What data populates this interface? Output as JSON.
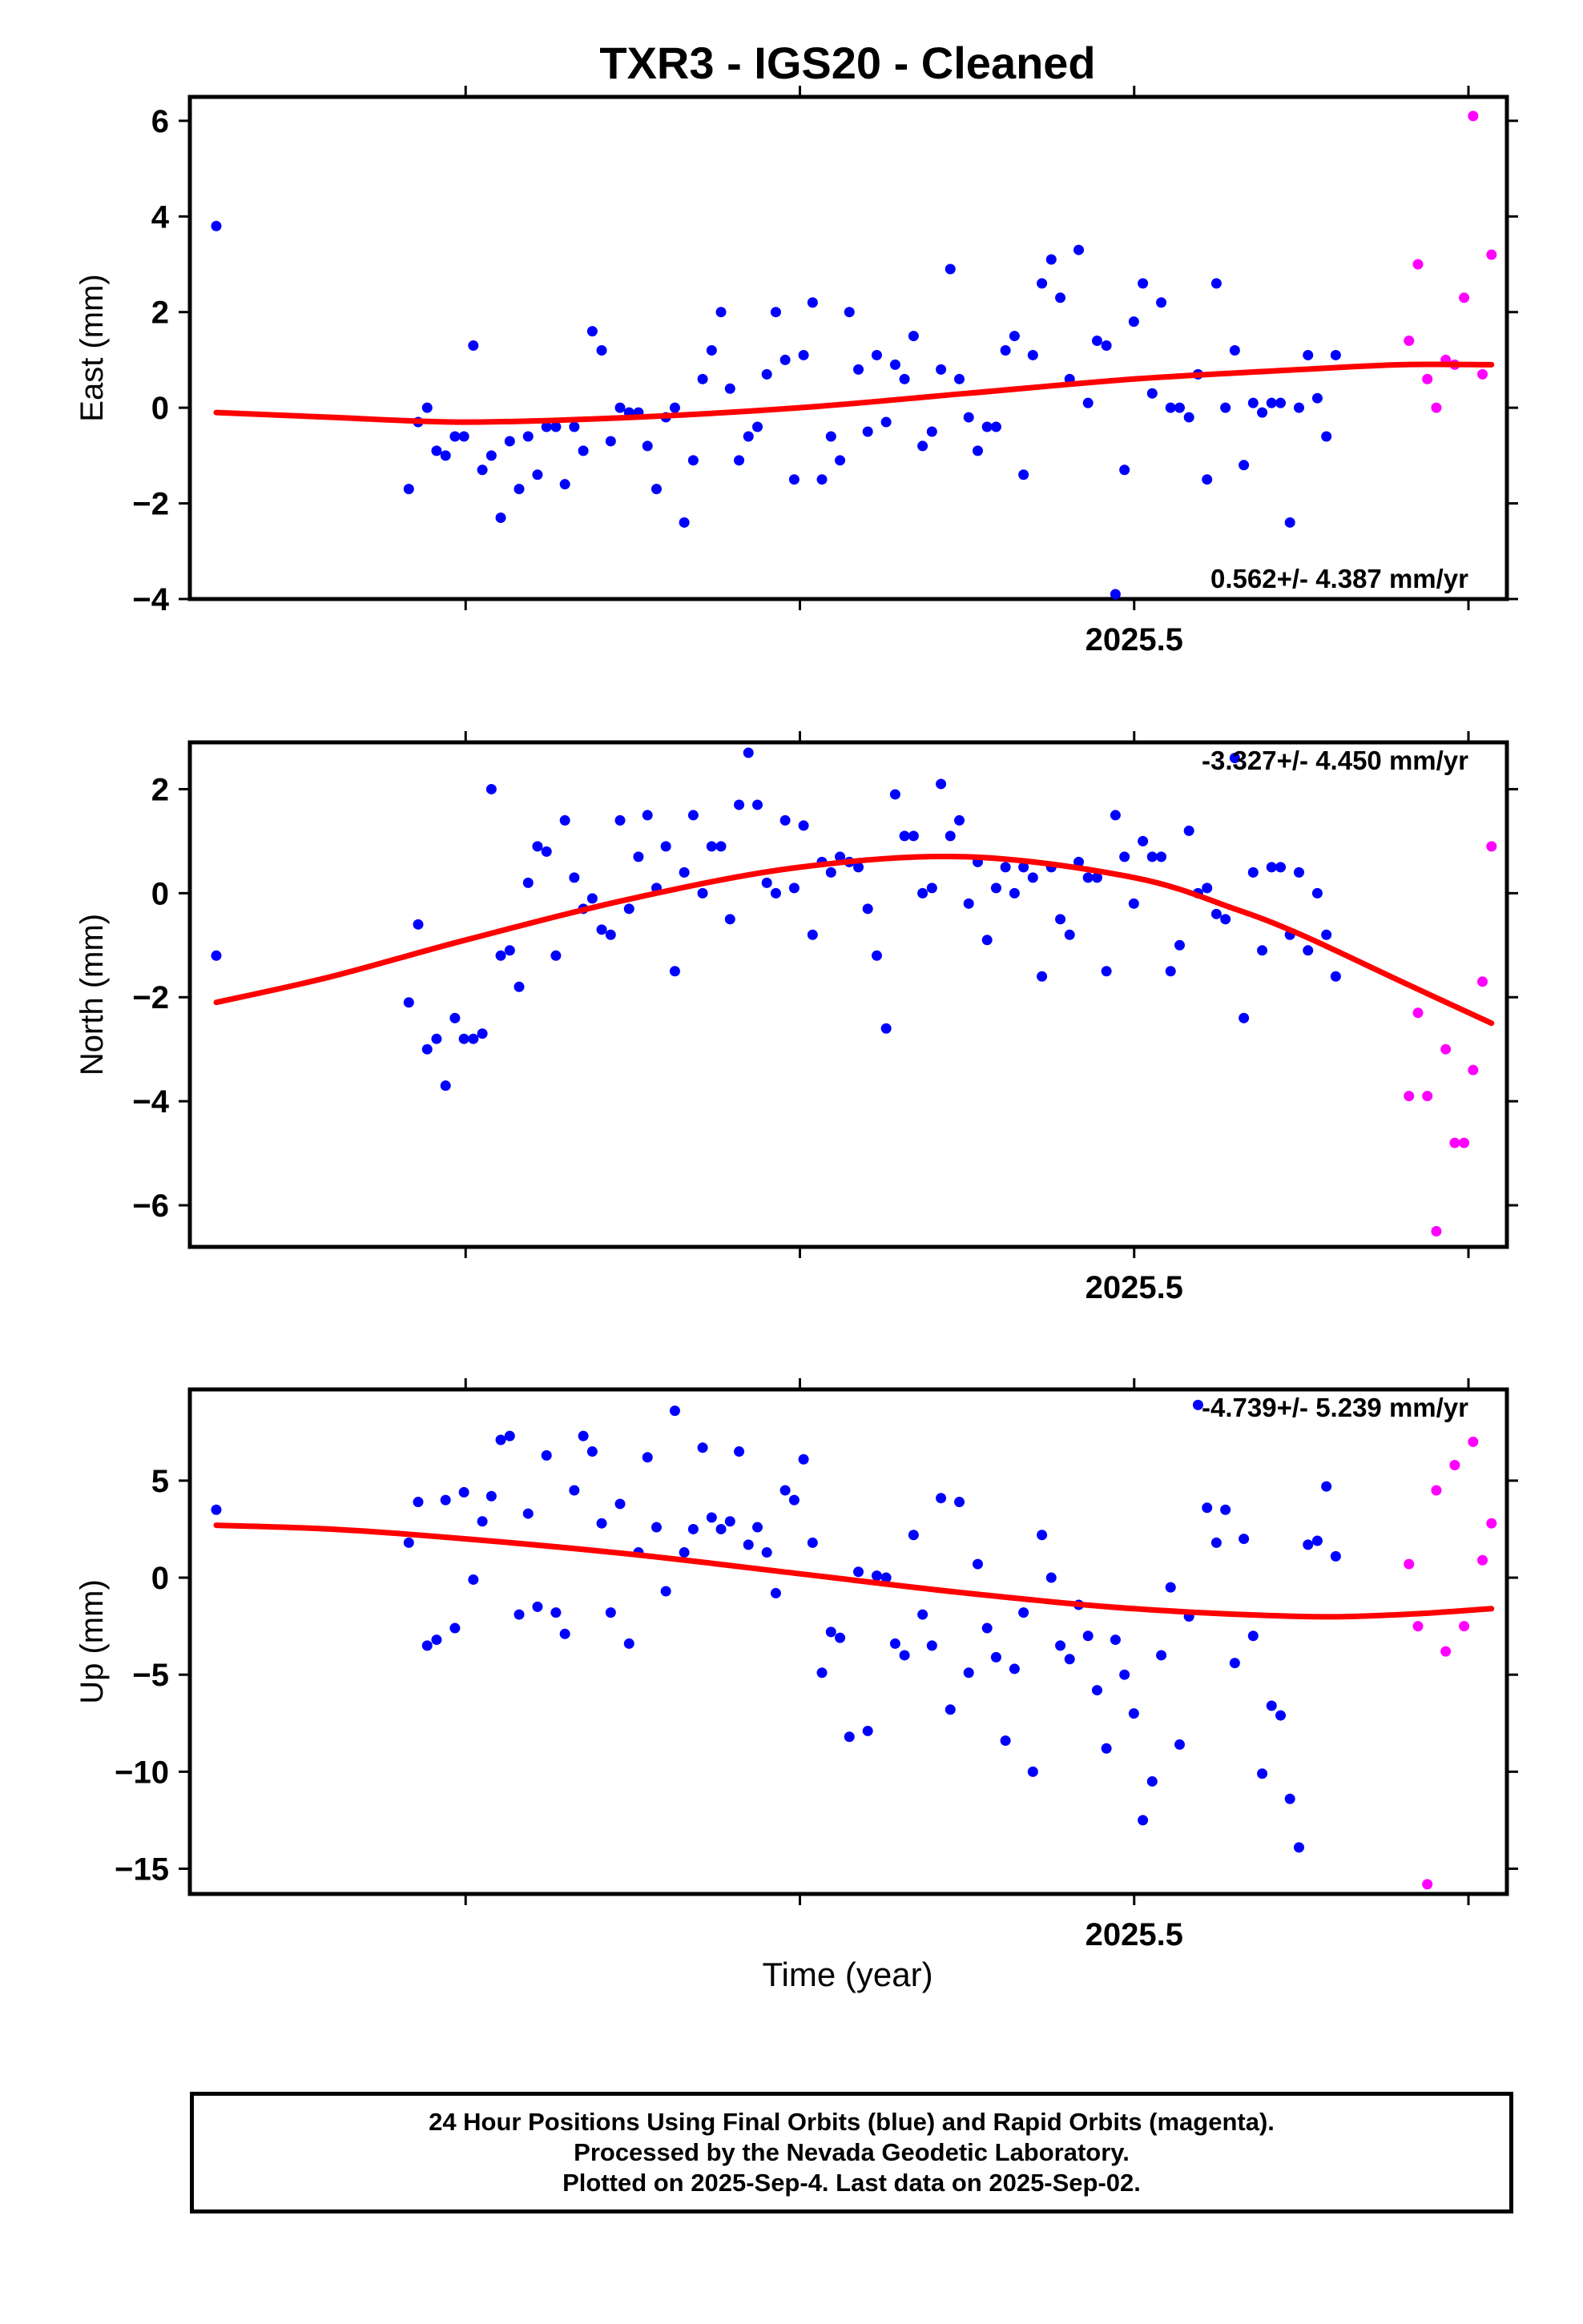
{
  "title": "TXR3  - IGS20 - Cleaned",
  "x_axis_label": "Time (year)",
  "footer": {
    "line1": "24 Hour Positions Using Final Orbits (blue) and Rapid Orbits (magenta).",
    "line2": "Processed by the Nevada Geodetic Laboratory.",
    "line3": "Plotted on 2025-Sep-4. Last data on 2025-Sep-02."
  },
  "colors": {
    "final": "#0000ff",
    "rapid": "#ff00ff",
    "fit": "#ff0000"
  },
  "chart_data": [
    {
      "type": "scatter",
      "ylabel": "East (mm)",
      "rate_text": "0.562+/- 4.387 mm/yr",
      "xlim": [
        2025.2175,
        2025.6115
      ],
      "ylim": [
        -4,
        6.5
      ],
      "yticks": [
        6,
        4,
        2,
        0,
        -2,
        -4
      ],
      "ytick_labels": [
        "6",
        "4",
        "2",
        "0",
        "−2",
        "−4"
      ],
      "xticks": [
        2025.5
      ],
      "xtick_labels": [
        "2025.5"
      ],
      "x_minor": [
        2025.3,
        2025.4,
        2025.6
      ],
      "series": [
        {
          "name": "Final Orbits",
          "color": "#0000ff",
          "x": [
            2025.2254,
            2025.283,
            2025.2858,
            2025.2885,
            2025.2913,
            2025.294,
            2025.2968,
            2025.2995,
            2025.3023,
            2025.305,
            2025.3077,
            2025.3105,
            2025.3132,
            2025.316,
            2025.3187,
            2025.3215,
            2025.3242,
            2025.327,
            2025.3297,
            2025.3325,
            2025.3352,
            2025.3379,
            2025.3407,
            2025.3434,
            2025.3462,
            2025.3489,
            2025.3517,
            2025.3544,
            2025.3571,
            2025.3599,
            2025.3626,
            2025.3654,
            2025.3681,
            2025.3709,
            2025.3736,
            2025.3764,
            2025.3791,
            2025.3818,
            2025.3846,
            2025.3873,
            2025.3901,
            2025.3928,
            2025.3956,
            2025.3983,
            2025.4011,
            2025.4038,
            2025.4066,
            2025.4093,
            2025.412,
            2025.4148,
            2025.4175,
            2025.4203,
            2025.423,
            2025.4258,
            2025.4285,
            2025.4313,
            2025.434,
            2025.4367,
            2025.4395,
            2025.4422,
            2025.445,
            2025.4477,
            2025.4505,
            2025.4532,
            2025.456,
            2025.4587,
            2025.4615,
            2025.4642,
            2025.4669,
            2025.4697,
            2025.4724,
            2025.4752,
            2025.4779,
            2025.4807,
            2025.4834,
            2025.4862,
            2025.4889,
            2025.4917,
            2025.4944,
            2025.4971,
            2025.4999,
            2025.5026,
            2025.5054,
            2025.5081,
            2025.5109,
            2025.5136,
            2025.5164,
            2025.5191,
            2025.5218,
            2025.5246,
            2025.5273,
            2025.5301,
            2025.5328,
            2025.5356,
            2025.5383,
            2025.5411,
            2025.5438,
            2025.5466,
            2025.5493,
            2025.552,
            2025.5548,
            2025.5575,
            2025.5603
          ],
          "y": [
            3.8,
            -1.7,
            -0.3,
            0.0,
            -0.9,
            -1.0,
            -0.6,
            -0.6,
            1.3,
            -1.3,
            -1.0,
            -2.3,
            -0.7,
            -1.7,
            -0.6,
            -1.4,
            -0.4,
            -0.4,
            -1.6,
            -0.4,
            -0.9,
            1.6,
            1.2,
            -0.7,
            0.0,
            -0.1,
            -0.1,
            -0.8,
            -1.7,
            -0.2,
            0.0,
            -2.4,
            -1.1,
            0.6,
            1.2,
            2.0,
            0.4,
            -1.1,
            -0.6,
            -0.4,
            0.7,
            2.0,
            1.0,
            -1.5,
            1.1,
            2.2,
            -1.5,
            -0.6,
            -1.1,
            2.0,
            0.8,
            -0.5,
            1.1,
            -0.3,
            0.9,
            0.6,
            1.5,
            -0.8,
            -0.5,
            0.8,
            2.9,
            0.6,
            -0.2,
            -0.9,
            -0.4,
            -0.4,
            1.2,
            1.5,
            -1.4,
            1.1,
            2.6,
            3.1,
            2.3,
            0.6,
            3.3,
            0.1,
            1.4,
            1.3,
            -3.9,
            -1.3,
            1.8,
            2.6,
            0.3,
            2.2,
            0.0,
            0.0,
            -0.2,
            0.7,
            -1.5,
            2.6,
            0.0,
            1.2,
            -1.2,
            0.1,
            -0.1,
            0.1,
            0.1,
            -2.4,
            0.0,
            1.1,
            0.2,
            -0.6,
            1.1
          ]
        },
        {
          "name": "Rapid Orbits",
          "color": "#ff00ff",
          "x": [
            2025.5822,
            2025.5849,
            2025.5877,
            2025.5904,
            2025.5932,
            2025.5959,
            2025.5987,
            2025.6014,
            2025.6042,
            2025.6069
          ],
          "y": [
            1.4,
            3.0,
            0.6,
            0.0,
            1.0,
            0.9,
            2.3,
            6.1,
            0.7,
            3.2
          ]
        }
      ],
      "fit": {
        "color": "#ff0000",
        "x": [
          2025.2254,
          2025.26,
          2025.3,
          2025.35,
          2025.4,
          2025.45,
          2025.5,
          2025.55,
          2025.58,
          2025.6069
        ],
        "y": [
          -0.1,
          -0.2,
          -0.3,
          -0.2,
          0.0,
          0.3,
          0.6,
          0.8,
          0.9,
          0.9
        ]
      }
    },
    {
      "type": "scatter",
      "ylabel": "North (mm)",
      "rate_text": "-3.327+/- 4.450 mm/yr",
      "xlim": [
        2025.2175,
        2025.6115
      ],
      "ylim": [
        -6.8,
        2.9
      ],
      "yticks": [
        2,
        0,
        -2,
        -4,
        -6
      ],
      "ytick_labels": [
        "2",
        "0",
        "−2",
        "−4",
        "−6"
      ],
      "xticks": [
        2025.5
      ],
      "xtick_labels": [
        "2025.5"
      ],
      "x_minor": [
        2025.3,
        2025.4,
        2025.6
      ],
      "series": [
        {
          "name": "Final Orbits",
          "color": "#0000ff",
          "x": [
            2025.2254,
            2025.283,
            2025.2858,
            2025.2885,
            2025.2913,
            2025.294,
            2025.2968,
            2025.2995,
            2025.3023,
            2025.305,
            2025.3077,
            2025.3105,
            2025.3132,
            2025.316,
            2025.3187,
            2025.3215,
            2025.3242,
            2025.327,
            2025.3297,
            2025.3325,
            2025.3352,
            2025.3379,
            2025.3407,
            2025.3434,
            2025.3462,
            2025.3489,
            2025.3517,
            2025.3544,
            2025.3571,
            2025.3599,
            2025.3626,
            2025.3654,
            2025.3681,
            2025.3709,
            2025.3736,
            2025.3764,
            2025.3791,
            2025.3818,
            2025.3846,
            2025.3873,
            2025.3901,
            2025.3928,
            2025.3956,
            2025.3983,
            2025.4011,
            2025.4038,
            2025.4066,
            2025.4093,
            2025.412,
            2025.4148,
            2025.4175,
            2025.4203,
            2025.423,
            2025.4258,
            2025.4285,
            2025.4313,
            2025.434,
            2025.4367,
            2025.4395,
            2025.4422,
            2025.445,
            2025.4477,
            2025.4505,
            2025.4532,
            2025.456,
            2025.4587,
            2025.4615,
            2025.4642,
            2025.4669,
            2025.4697,
            2025.4724,
            2025.4752,
            2025.4779,
            2025.4807,
            2025.4834,
            2025.4862,
            2025.4889,
            2025.4917,
            2025.4944,
            2025.4971,
            2025.4999,
            2025.5026,
            2025.5054,
            2025.5081,
            2025.5109,
            2025.5136,
            2025.5164,
            2025.5191,
            2025.5218,
            2025.5246,
            2025.5273,
            2025.5301,
            2025.5328,
            2025.5356,
            2025.5383,
            2025.5411,
            2025.5438,
            2025.5466,
            2025.5493,
            2025.552,
            2025.5548,
            2025.5575,
            2025.5603
          ],
          "y": [
            -1.2,
            -2.1,
            -0.6,
            -3.0,
            -2.8,
            -3.7,
            -2.4,
            -2.8,
            -2.8,
            -2.7,
            2.0,
            -1.2,
            -1.1,
            -1.8,
            0.2,
            0.9,
            0.8,
            -1.2,
            1.4,
            0.3,
            -0.3,
            -0.1,
            -0.7,
            -0.8,
            1.4,
            -0.3,
            0.7,
            1.5,
            0.1,
            0.9,
            -1.5,
            0.4,
            1.5,
            0.0,
            0.9,
            0.9,
            -0.5,
            1.7,
            2.7,
            1.7,
            0.2,
            0.0,
            1.4,
            0.1,
            1.3,
            -0.8,
            0.6,
            0.4,
            0.7,
            0.6,
            0.5,
            -0.3,
            -1.2,
            -2.6,
            1.9,
            1.1,
            1.1,
            0.0,
            0.1,
            2.1,
            1.1,
            1.4,
            -0.2,
            0.6,
            -0.9,
            0.1,
            0.5,
            0.0,
            0.5,
            0.3,
            -1.6,
            0.5,
            -0.5,
            -0.8,
            0.6,
            0.3,
            0.3,
            -1.5,
            1.5,
            0.7,
            -0.2,
            1.0,
            0.7,
            0.7,
            -1.5,
            -1.0,
            1.2,
            0.0,
            0.1,
            -0.4,
            -0.5,
            2.6,
            -2.4,
            0.4,
            -1.1,
            0.5,
            0.5,
            -0.8,
            0.4,
            -1.1,
            0.0,
            -0.8,
            -1.6
          ]
        },
        {
          "name": "Rapid Orbits",
          "color": "#ff00ff",
          "x": [
            2025.5822,
            2025.5849,
            2025.5877,
            2025.5904,
            2025.5932,
            2025.5959,
            2025.5987,
            2025.6014,
            2025.6042,
            2025.6069
          ],
          "y": [
            -3.9,
            -2.3,
            -3.9,
            -6.5,
            -3.0,
            -4.8,
            -4.8,
            -3.4,
            -1.7,
            0.9
          ]
        }
      ],
      "fit": {
        "color": "#ff0000",
        "x": [
          2025.2254,
          2025.26,
          2025.3,
          2025.35,
          2025.4,
          2025.45,
          2025.5,
          2025.53,
          2025.55,
          2025.58,
          2025.6069
        ],
        "y": [
          -2.1,
          -1.6,
          -0.9,
          -0.1,
          0.5,
          0.7,
          0.3,
          -0.3,
          -0.8,
          -1.7,
          -2.5
        ]
      }
    },
    {
      "type": "scatter",
      "ylabel": "Up (mm)",
      "rate_text": "-4.739+/- 5.239 mm/yr",
      "xlim": [
        2025.2175,
        2025.6115
      ],
      "ylim": [
        -16.3,
        9.7
      ],
      "yticks": [
        5,
        0,
        -5,
        -10,
        -15
      ],
      "ytick_labels": [
        "5",
        "0",
        "−5",
        "−10",
        "−15"
      ],
      "xticks": [
        2025.5
      ],
      "xtick_labels": [
        "2025.5"
      ],
      "x_minor": [
        2025.3,
        2025.4,
        2025.6
      ],
      "series": [
        {
          "name": "Final Orbits",
          "color": "#0000ff",
          "x": [
            2025.2254,
            2025.283,
            2025.2858,
            2025.2885,
            2025.2913,
            2025.294,
            2025.2968,
            2025.2995,
            2025.3023,
            2025.305,
            2025.3077,
            2025.3105,
            2025.3132,
            2025.316,
            2025.3187,
            2025.3215,
            2025.3242,
            2025.327,
            2025.3297,
            2025.3325,
            2025.3352,
            2025.3379,
            2025.3407,
            2025.3434,
            2025.3462,
            2025.3489,
            2025.3517,
            2025.3544,
            2025.3571,
            2025.3599,
            2025.3626,
            2025.3654,
            2025.3681,
            2025.3709,
            2025.3736,
            2025.3764,
            2025.3791,
            2025.3818,
            2025.3846,
            2025.3873,
            2025.3901,
            2025.3928,
            2025.3956,
            2025.3983,
            2025.4011,
            2025.4038,
            2025.4066,
            2025.4093,
            2025.412,
            2025.4148,
            2025.4175,
            2025.4203,
            2025.423,
            2025.4258,
            2025.4285,
            2025.4313,
            2025.434,
            2025.4367,
            2025.4395,
            2025.4422,
            2025.445,
            2025.4477,
            2025.4505,
            2025.4532,
            2025.456,
            2025.4587,
            2025.4615,
            2025.4642,
            2025.4669,
            2025.4697,
            2025.4724,
            2025.4752,
            2025.4779,
            2025.4807,
            2025.4834,
            2025.4862,
            2025.4889,
            2025.4917,
            2025.4944,
            2025.4971,
            2025.4999,
            2025.5026,
            2025.5054,
            2025.5081,
            2025.5109,
            2025.5136,
            2025.5164,
            2025.5191,
            2025.5218,
            2025.5246,
            2025.5273,
            2025.5301,
            2025.5328,
            2025.5356,
            2025.5383,
            2025.5411,
            2025.5438,
            2025.5466,
            2025.5493,
            2025.552,
            2025.5548,
            2025.5575,
            2025.5603
          ],
          "y": [
            3.5,
            1.8,
            3.9,
            -3.5,
            -3.2,
            4.0,
            -2.6,
            4.4,
            -0.1,
            2.9,
            4.2,
            7.1,
            7.3,
            -1.9,
            3.3,
            -1.5,
            6.3,
            -1.8,
            -2.9,
            4.5,
            7.3,
            6.5,
            2.8,
            -1.8,
            3.8,
            -3.4,
            1.3,
            6.2,
            2.6,
            -0.7,
            8.6,
            1.3,
            2.5,
            6.7,
            3.1,
            2.5,
            2.9,
            6.5,
            1.7,
            2.6,
            1.3,
            -0.8,
            4.5,
            4.0,
            6.1,
            1.8,
            -4.9,
            -2.8,
            -3.1,
            -8.2,
            0.3,
            -7.9,
            0.1,
            0.0,
            -3.4,
            -4.0,
            2.2,
            -1.9,
            -3.5,
            4.1,
            -6.8,
            3.9,
            -4.9,
            0.7,
            -2.6,
            -4.1,
            -8.4,
            -4.7,
            -1.8,
            -10.0,
            2.2,
            0.0,
            -3.5,
            -4.2,
            -1.4,
            -3.0,
            -5.8,
            -8.8,
            -3.2,
            -5.0,
            -7.0,
            -12.5,
            -10.5,
            -4.0,
            -0.5,
            -8.6,
            -2.0,
            8.9,
            3.6,
            1.8,
            3.5,
            -4.4,
            2.0,
            -3.0,
            -10.1,
            -6.6,
            -7.1,
            -11.4,
            -13.9,
            1.7,
            1.9,
            4.7,
            1.1
          ]
        },
        {
          "name": "Rapid Orbits",
          "color": "#ff00ff",
          "x": [
            2025.5822,
            2025.5849,
            2025.5877,
            2025.5904,
            2025.5932,
            2025.5959,
            2025.5987,
            2025.6014,
            2025.6042,
            2025.6069
          ],
          "y": [
            0.7,
            -2.5,
            -15.8,
            4.5,
            -3.8,
            5.8,
            -2.5,
            7.0,
            0.9,
            2.8
          ]
        }
      ],
      "fit": {
        "color": "#ff0000",
        "x": [
          2025.2254,
          2025.26,
          2025.3,
          2025.35,
          2025.4,
          2025.45,
          2025.5,
          2025.55,
          2025.58,
          2025.6069
        ],
        "y": [
          2.7,
          2.5,
          2.0,
          1.2,
          0.2,
          -0.8,
          -1.6,
          -2.0,
          -1.9,
          -1.6
        ]
      }
    }
  ]
}
